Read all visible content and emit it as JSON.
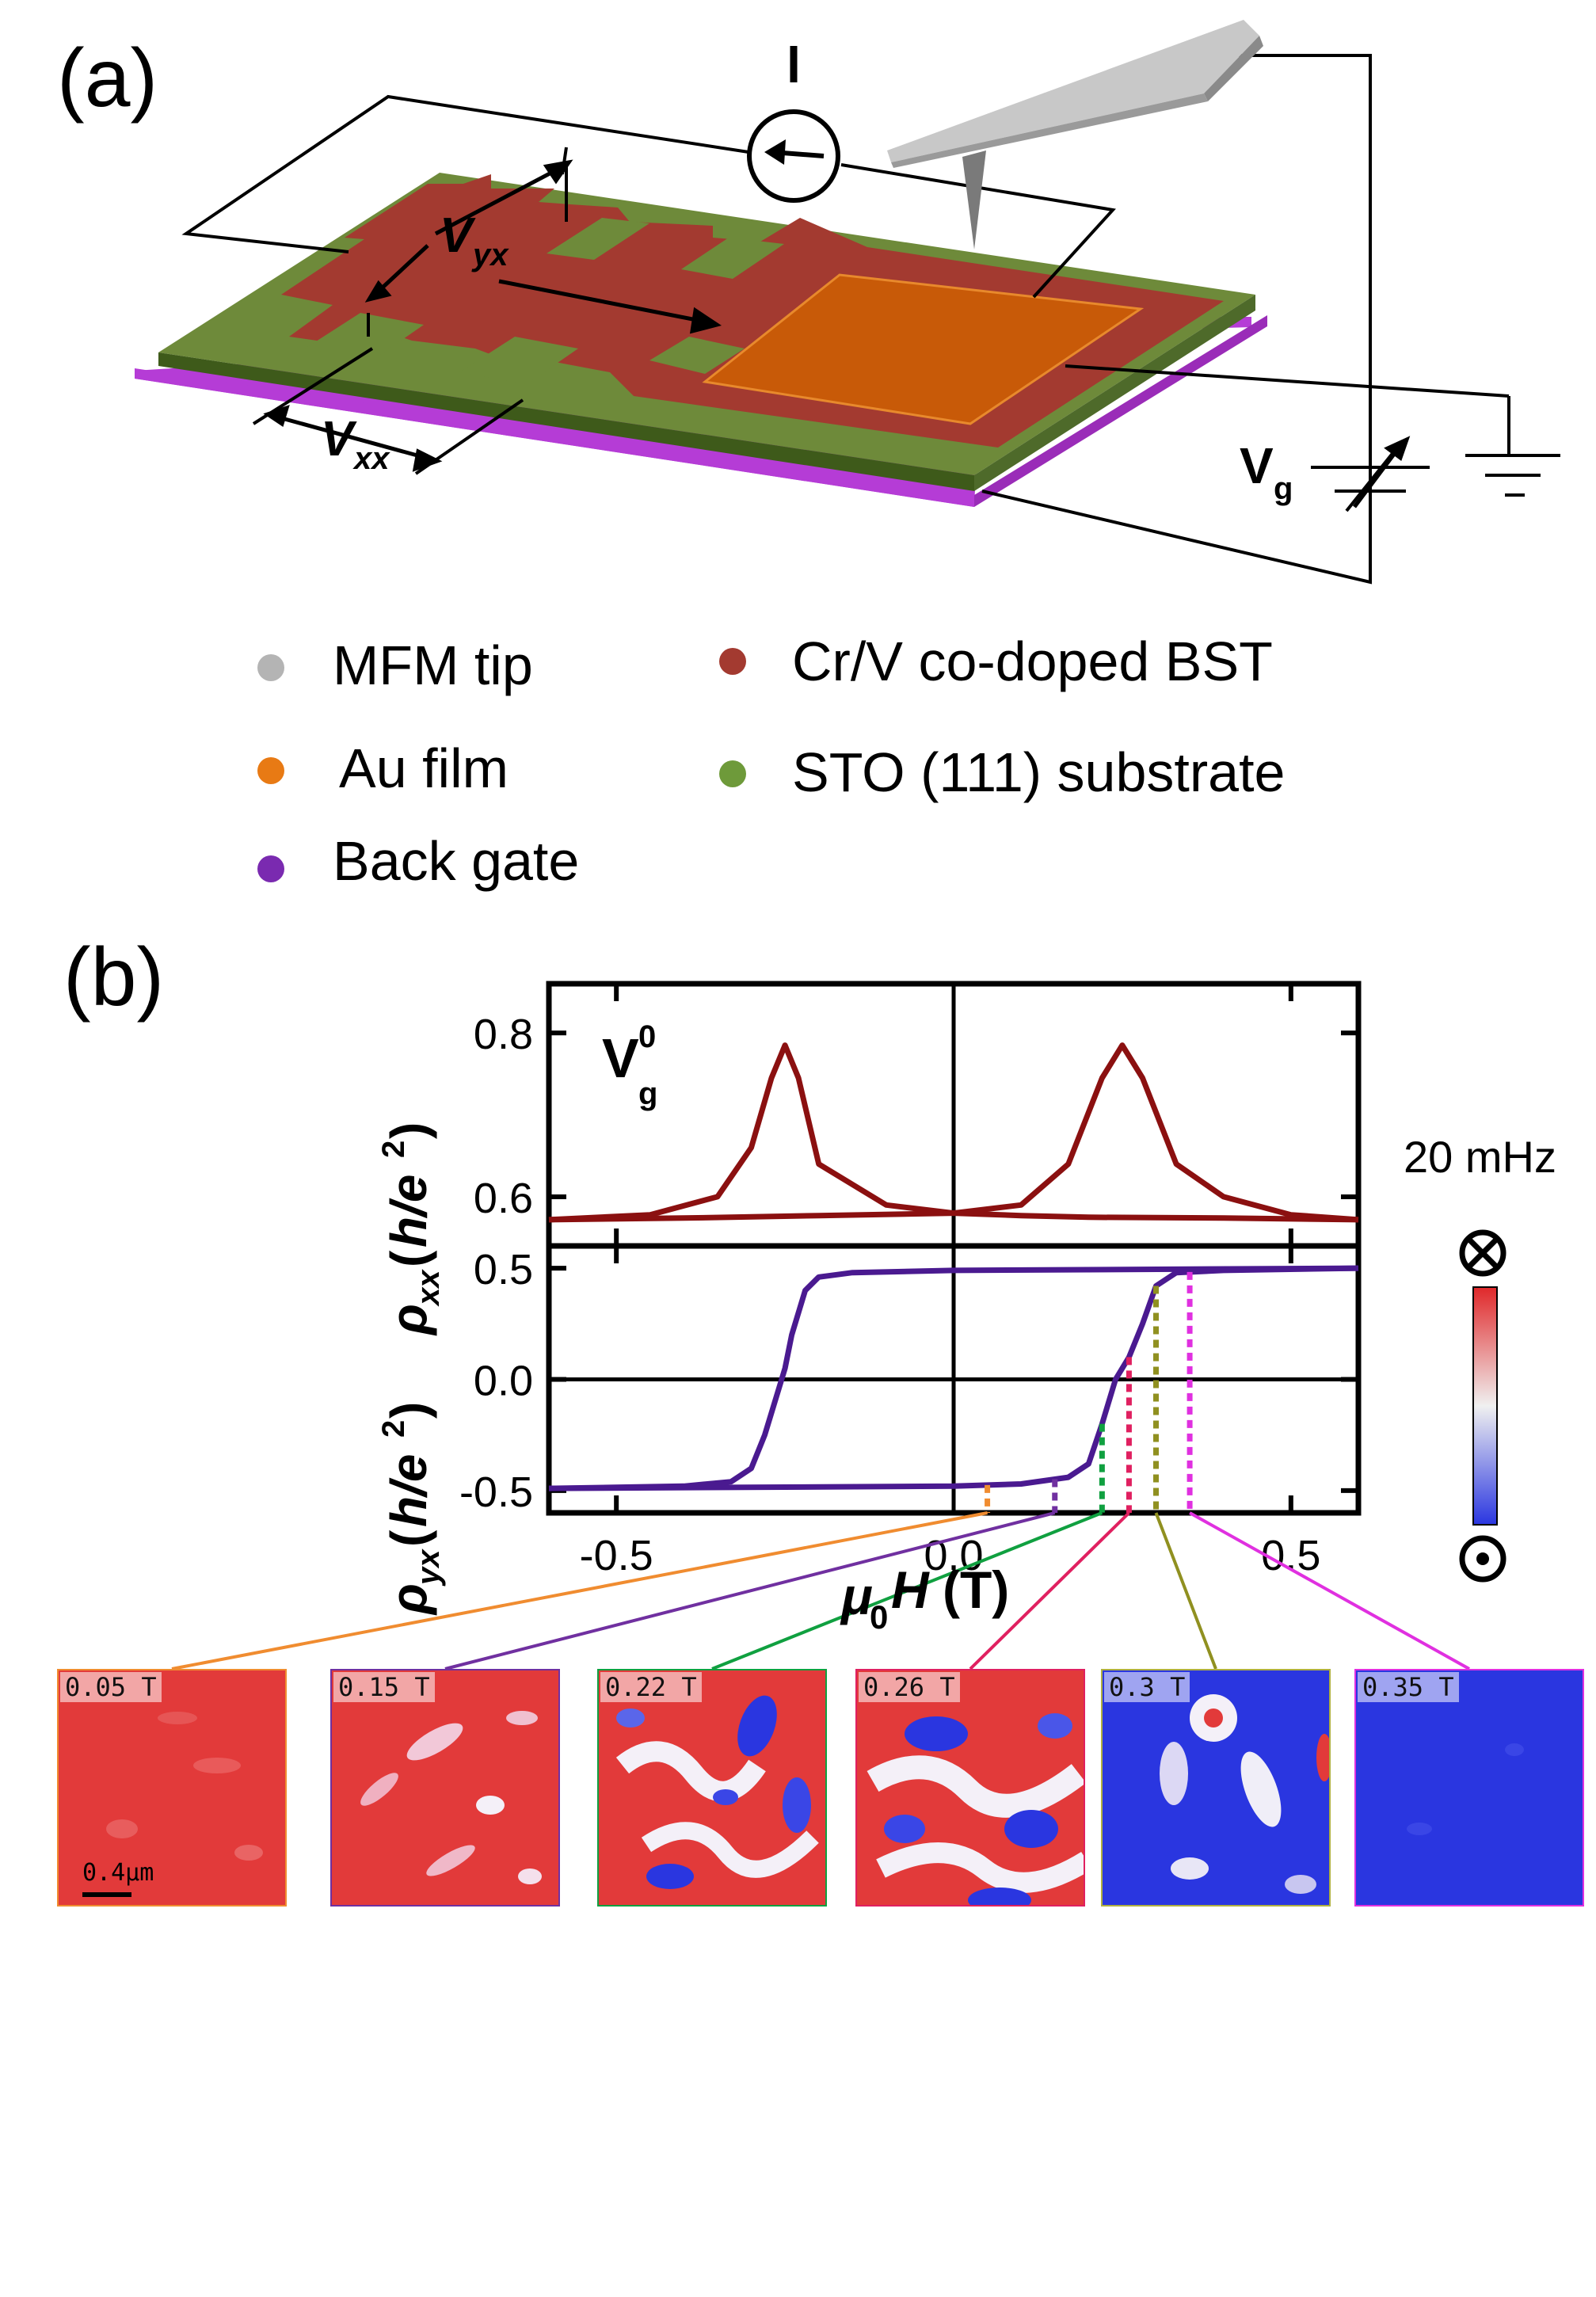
{
  "panel_a": {
    "label": "(a)",
    "labels": {
      "current": "I",
      "vyx_main": "V",
      "vyx_sub": "yx",
      "vxx_main": "V",
      "vxx_sub": "xx",
      "vg_main": "V",
      "vg_sub": "g"
    },
    "colors": {
      "tip": "#c8c8c8",
      "au": "#c85a08",
      "bst": "#a33a30",
      "sto": "#6e8a3a",
      "gate": "#b53cd6"
    }
  },
  "legend": [
    {
      "label": "MFM tip",
      "color": "#b4b4b4"
    },
    {
      "label": "Au film",
      "color": "#e87a14"
    },
    {
      "label": "Back gate",
      "color": "#7a2ab0"
    },
    {
      "label": "Cr/V co-doped BST",
      "color": "#a33a30"
    },
    {
      "label": "STO (111) substrate",
      "color": "#6e9a3a"
    }
  ],
  "panel_b": {
    "label": "(b)",
    "gate_label_main": "V",
    "gate_label_sup": "0",
    "gate_label_sub": "g",
    "colorbar_title": "20 mHz"
  },
  "chart_data": [
    {
      "type": "line",
      "ylabel": "ρxx (h/e²)",
      "ylabel_parts": {
        "rho": "ρ",
        "sub": "xx",
        "unit_open": "(",
        "unit": "h/e",
        "sup": "2",
        "unit_close": ")"
      },
      "xlim": [
        -0.6,
        0.6
      ],
      "ylim": [
        0.54,
        0.86
      ],
      "yticks": [
        0.6,
        0.8
      ],
      "ytick_labels": [
        "0.6",
        "0.8"
      ],
      "series": [
        {
          "x": [
            -0.6,
            -0.45,
            -0.35,
            -0.3,
            -0.27,
            -0.25,
            -0.23,
            -0.2,
            -0.1,
            0.0,
            0.1,
            0.2,
            0.4,
            0.6
          ],
          "y": [
            0.572,
            0.578,
            0.6,
            0.66,
            0.745,
            0.785,
            0.745,
            0.64,
            0.59,
            0.58,
            0.577,
            0.575,
            0.574,
            0.572
          ]
        },
        {
          "x": [
            -0.6,
            -0.4,
            -0.2,
            0.0,
            0.1,
            0.17,
            0.22,
            0.25,
            0.28,
            0.33,
            0.4,
            0.5,
            0.6
          ],
          "y": [
            0.572,
            0.574,
            0.577,
            0.58,
            0.59,
            0.64,
            0.745,
            0.785,
            0.745,
            0.64,
            0.6,
            0.578,
            0.572
          ]
        }
      ]
    },
    {
      "type": "line",
      "ylabel": "ρyx (h/e²)",
      "ylabel_parts": {
        "rho": "ρ",
        "sub": "yx",
        "unit_open": "(",
        "unit": "h/e",
        "sup": "2",
        "unit_close": ")"
      },
      "xlabel": "μ0H (T)",
      "xlabel_parts": {
        "mu": "μ",
        "sub": "0",
        "h": "H",
        "unit": "(T)"
      },
      "xlim": [
        -0.6,
        0.6
      ],
      "ylim": [
        -0.6,
        0.6
      ],
      "xticks": [
        -0.5,
        0.0,
        0.5
      ],
      "xtick_labels": [
        "-0.5",
        "0.0",
        "0.5"
      ],
      "yticks": [
        -0.5,
        0.0,
        0.5
      ],
      "ytick_labels": [
        "-0.5",
        "0.0",
        "0.5"
      ],
      "series": [
        {
          "x": [
            -0.6,
            -0.4,
            -0.33,
            -0.3,
            -0.28,
            -0.26,
            -0.25,
            -0.24,
            -0.22,
            -0.2,
            -0.15,
            0.0,
            0.6
          ],
          "y": [
            -0.49,
            -0.48,
            -0.46,
            -0.4,
            -0.25,
            -0.05,
            0.05,
            0.2,
            0.4,
            0.46,
            0.48,
            0.49,
            0.5
          ]
        },
        {
          "x": [
            -0.6,
            0.0,
            0.1,
            0.17,
            0.2,
            0.22,
            0.24,
            0.26,
            0.28,
            0.3,
            0.33,
            0.4,
            0.6
          ],
          "y": [
            -0.49,
            -0.48,
            -0.47,
            -0.44,
            -0.38,
            -0.2,
            0.0,
            0.1,
            0.25,
            0.42,
            0.48,
            0.49,
            0.5
          ]
        }
      ],
      "markers": [
        {
          "x": 0.05,
          "color": "#f08c30"
        },
        {
          "x": 0.15,
          "color": "#7030a0"
        },
        {
          "x": 0.22,
          "color": "#10a040"
        },
        {
          "x": 0.26,
          "color": "#e02060"
        },
        {
          "x": 0.3,
          "color": "#909020"
        },
        {
          "x": 0.35,
          "color": "#e030e0"
        }
      ]
    }
  ],
  "mfm_images": [
    {
      "label": "0.05 T",
      "border": "#f08c30",
      "scalebar": "0.4μm"
    },
    {
      "label": "0.15 T",
      "border": "#7030a0"
    },
    {
      "label": "0.22 T",
      "border": "#10a040"
    },
    {
      "label": "0.26 T",
      "border": "#e02060"
    },
    {
      "label": "0.3 T",
      "border": "#b0b040"
    },
    {
      "label": "0.35 T",
      "border": "#e030e0"
    }
  ]
}
